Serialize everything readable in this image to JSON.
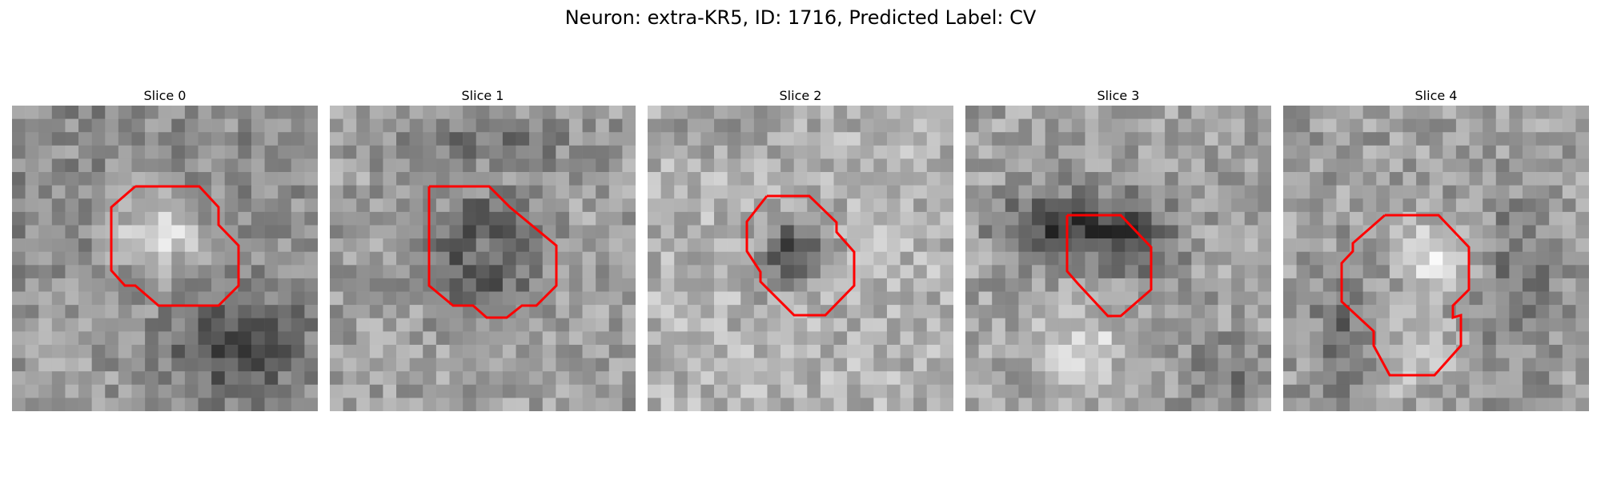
{
  "figure": {
    "title": "Neuron: extra-KR5, ID: 1716, Predicted Label: CV"
  },
  "colors": {
    "contour": "#ff0000",
    "background": "#ffffff",
    "colormap": "grayscale"
  },
  "panels": [
    {
      "title": "Slice 0"
    },
    {
      "title": "Slice 1"
    },
    {
      "title": "Slice 2"
    },
    {
      "title": "Slice 3"
    },
    {
      "title": "Slice 4"
    }
  ]
}
